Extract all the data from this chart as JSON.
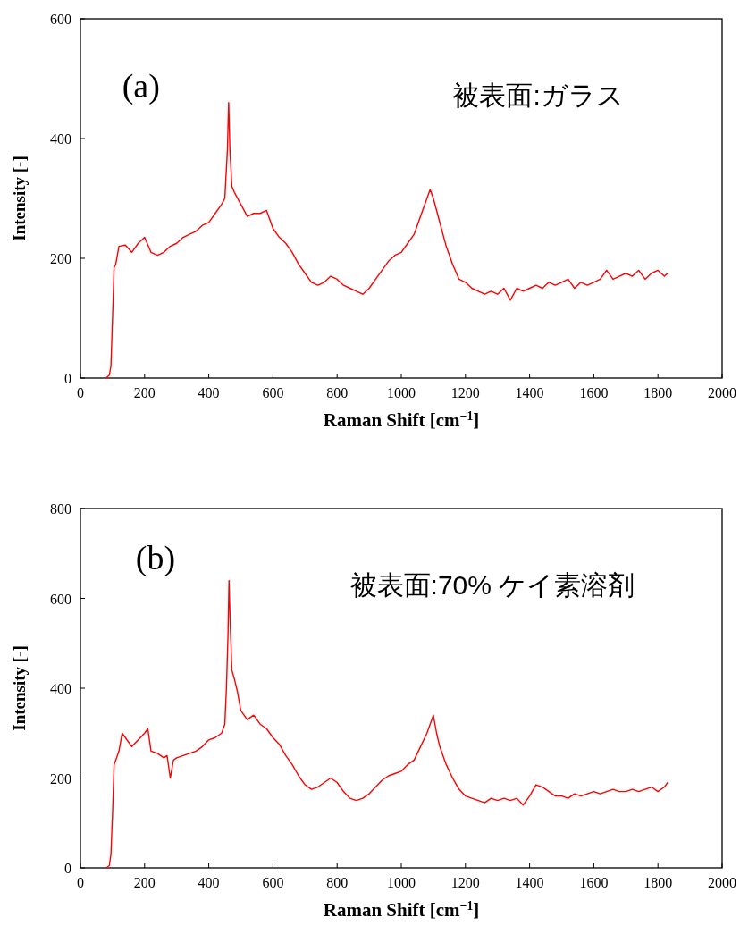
{
  "chart_data": [
    {
      "type": "line",
      "xlabel": "Raman Shift [cm$^{−1}$]",
      "ylabel": "Intensity [-]",
      "annotations": [
        "(a)",
        "被表面:ガラス"
      ],
      "xlim": [
        0,
        2000
      ],
      "xticks": [
        0,
        200,
        400,
        600,
        800,
        1000,
        1200,
        1400,
        1600,
        1800,
        2000
      ],
      "ylim": [
        0,
        600
      ],
      "yticks": [
        0,
        200,
        400,
        600
      ],
      "series": [
        {
          "color": "#ff0000",
          "x": [
            80,
            90,
            95,
            100,
            105,
            110,
            120,
            140,
            160,
            180,
            200,
            220,
            240,
            260,
            280,
            300,
            320,
            340,
            360,
            380,
            400,
            420,
            440,
            450,
            458,
            462,
            466,
            472,
            480,
            500,
            520,
            540,
            560,
            580,
            600,
            620,
            640,
            660,
            680,
            700,
            720,
            740,
            760,
            780,
            800,
            820,
            840,
            860,
            880,
            900,
            920,
            940,
            960,
            980,
            1000,
            1020,
            1040,
            1060,
            1080,
            1090,
            1100,
            1120,
            1140,
            1160,
            1180,
            1200,
            1220,
            1240,
            1260,
            1280,
            1300,
            1320,
            1340,
            1360,
            1380,
            1400,
            1420,
            1440,
            1460,
            1480,
            1500,
            1520,
            1540,
            1560,
            1580,
            1600,
            1620,
            1640,
            1660,
            1680,
            1700,
            1720,
            1740,
            1760,
            1780,
            1800,
            1820,
            1830
          ],
          "values": [
            0,
            5,
            20,
            100,
            185,
            190,
            220,
            222,
            210,
            225,
            235,
            210,
            205,
            210,
            220,
            225,
            235,
            240,
            245,
            255,
            260,
            275,
            290,
            300,
            380,
            460,
            380,
            320,
            310,
            290,
            270,
            275,
            275,
            280,
            250,
            235,
            225,
            210,
            190,
            175,
            160,
            155,
            160,
            170,
            165,
            155,
            150,
            145,
            140,
            150,
            165,
            180,
            195,
            205,
            210,
            225,
            240,
            270,
            300,
            315,
            300,
            260,
            220,
            190,
            165,
            160,
            150,
            145,
            140,
            145,
            140,
            150,
            130,
            150,
            145,
            150,
            155,
            150,
            160,
            155,
            160,
            165,
            150,
            160,
            155,
            160,
            165,
            180,
            165,
            170,
            175,
            170,
            180,
            165,
            175,
            180,
            170,
            175
          ]
        }
      ]
    },
    {
      "type": "line",
      "xlabel": "Raman Shift [cm$^{−1}$]",
      "ylabel": "Intensity [-]",
      "annotations": [
        "(b)",
        "被表面:70% ケイ素溶剤"
      ],
      "xlim": [
        0,
        2000
      ],
      "xticks": [
        0,
        200,
        400,
        600,
        800,
        1000,
        1200,
        1400,
        1600,
        1800,
        2000
      ],
      "ylim": [
        0,
        800
      ],
      "yticks": [
        0,
        200,
        400,
        600,
        800
      ],
      "series": [
        {
          "color": "#ff0000",
          "x": [
            80,
            90,
            95,
            100,
            105,
            110,
            120,
            130,
            140,
            160,
            180,
            200,
            210,
            220,
            240,
            260,
            270,
            280,
            290,
            300,
            320,
            340,
            360,
            380,
            400,
            420,
            440,
            450,
            455,
            460,
            463,
            467,
            472,
            480,
            490,
            500,
            520,
            540,
            560,
            580,
            600,
            620,
            640,
            660,
            680,
            700,
            720,
            740,
            760,
            780,
            800,
            820,
            840,
            860,
            880,
            900,
            920,
            940,
            960,
            980,
            1000,
            1020,
            1040,
            1060,
            1080,
            1090,
            1100,
            1110,
            1120,
            1140,
            1160,
            1180,
            1200,
            1220,
            1240,
            1260,
            1280,
            1300,
            1320,
            1340,
            1360,
            1380,
            1400,
            1420,
            1440,
            1460,
            1480,
            1500,
            1520,
            1540,
            1560,
            1580,
            1600,
            1620,
            1640,
            1660,
            1680,
            1700,
            1720,
            1740,
            1760,
            1780,
            1800,
            1820,
            1830
          ],
          "values": [
            0,
            5,
            30,
            120,
            230,
            240,
            260,
            300,
            290,
            270,
            285,
            300,
            310,
            260,
            255,
            245,
            250,
            200,
            240,
            245,
            250,
            255,
            260,
            270,
            285,
            290,
            300,
            320,
            400,
            520,
            640,
            540,
            440,
            420,
            390,
            350,
            330,
            340,
            320,
            310,
            290,
            275,
            250,
            230,
            205,
            185,
            175,
            180,
            190,
            200,
            190,
            170,
            155,
            150,
            155,
            165,
            180,
            195,
            205,
            210,
            215,
            230,
            240,
            270,
            300,
            320,
            340,
            300,
            270,
            230,
            200,
            175,
            160,
            155,
            150,
            145,
            155,
            150,
            155,
            150,
            155,
            140,
            160,
            185,
            180,
            170,
            160,
            160,
            155,
            165,
            160,
            165,
            170,
            165,
            170,
            175,
            170,
            170,
            175,
            170,
            175,
            180,
            170,
            180,
            190
          ]
        }
      ]
    }
  ]
}
